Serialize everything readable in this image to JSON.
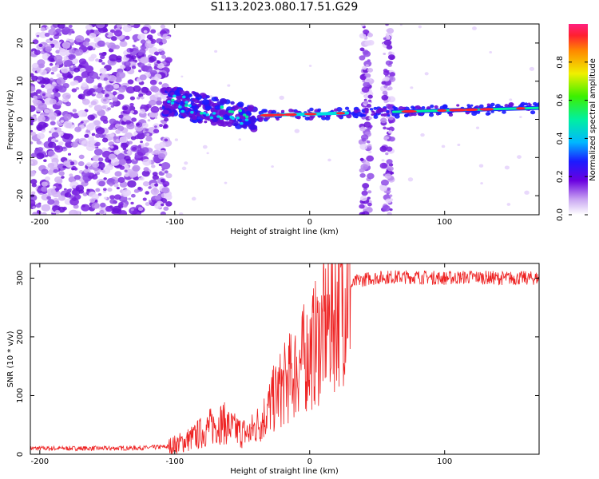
{
  "title": "S113.2023.080.17.51.G29",
  "colors": {
    "snr_line": "#ee2222",
    "waterfall_noise": "#9a33e8",
    "frame": "#000000"
  },
  "chart_data": [
    {
      "type": "heatmap",
      "title": "S113.2023.080.17.51.G29",
      "xlabel": "Height of straight line (km)",
      "ylabel": "Frequency (Hz)",
      "xlim": [
        -207,
        170
      ],
      "ylim": [
        -25,
        25
      ],
      "xticks": [
        -200,
        -100,
        0,
        100
      ],
      "yticks": [
        -20,
        -10,
        0,
        10,
        20
      ],
      "colorbar": {
        "label": "Normalized spectral amplitude",
        "range": [
          0,
          1
        ],
        "ticks": [
          "0.0",
          "0.2",
          "0.4",
          "0.6",
          "0.8"
        ]
      },
      "features": [
        {
          "name": "noise field",
          "x_range": [
            -207,
            -108
          ],
          "freq_range": [
            -25,
            25
          ]
        },
        {
          "name": "signal onset (descending trace)",
          "x_range": [
            -108,
            -40
          ],
          "freq_start": 5,
          "freq_end": 0
        },
        {
          "name": "steady carrier line",
          "x_range": [
            -40,
            170
          ],
          "freq_start": 1,
          "freq_end": 3
        },
        {
          "name": "vertical noise band",
          "x_center": 42,
          "freq_range": [
            -25,
            25
          ]
        },
        {
          "name": "vertical noise band",
          "x_center": 58,
          "freq_range": [
            -25,
            25
          ]
        }
      ]
    },
    {
      "type": "line",
      "xlabel": "Height of straight line (km)",
      "ylabel": "SNR (10 * v/v)",
      "xlim": [
        -207,
        170
      ],
      "ylim": [
        0,
        325
      ],
      "xticks": [
        -200,
        -100,
        0,
        100
      ],
      "yticks": [
        0,
        100,
        200,
        300
      ],
      "series": [
        {
          "name": "SNR",
          "x": [
            -207,
            -180,
            -150,
            -120,
            -105,
            -95,
            -85,
            -75,
            -65,
            -55,
            -45,
            -35,
            -25,
            -15,
            -5,
            5,
            15,
            25,
            35,
            45,
            60,
            80,
            100,
            120,
            140,
            160,
            170
          ],
          "y": [
            10,
            10,
            10,
            11,
            13,
            20,
            30,
            45,
            55,
            40,
            35,
            60,
            100,
            130,
            160,
            190,
            230,
            275,
            295,
            300,
            302,
            302,
            300,
            302,
            300,
            300,
            300
          ]
        }
      ]
    }
  ]
}
